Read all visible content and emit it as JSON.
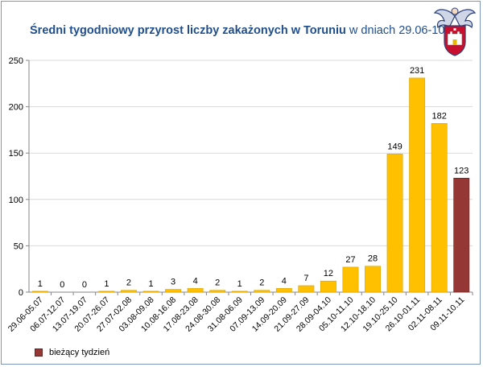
{
  "title": {
    "bold_part": "Średni tygodniowy przyrost liczby zakażonych w Toruniu",
    "regular_part": " w dniach 29.06-10.11"
  },
  "legend": {
    "label": "bieżący tydzień",
    "color": "#953735"
  },
  "colors": {
    "bar": "#ffc000",
    "bar_stroke": "#d9a300",
    "current": "#953735",
    "grid": "#d9d9d9",
    "title": "#1f4e8c"
  },
  "chart_data": {
    "type": "bar",
    "categories": [
      "29.06-05.07",
      "06.07-12.07",
      "13.07-19.07",
      "20.07-26.07",
      "27.07-02.08",
      "03.08-09.08",
      "10.08-16.08",
      "17.08-23.08",
      "24.08-30.08",
      "31.08-06.09",
      "07.09-13.09",
      "14.09-20.09",
      "21.09-27.09",
      "28.09-04.10",
      "05.10-11.10",
      "12.10-18.10",
      "19.10-25.10",
      "26.10-01.11",
      "02.11-08.11",
      "09.11-10.11"
    ],
    "values": [
      1,
      0,
      0,
      1,
      2,
      1,
      3,
      4,
      2,
      1,
      2,
      4,
      7,
      12,
      27,
      28,
      149,
      231,
      182,
      123
    ],
    "highlight_index": 19,
    "ylim": [
      0,
      250
    ],
    "yticks": [
      0,
      50,
      100,
      150,
      200,
      250
    ],
    "grid": true,
    "legend_position": "bottom-left"
  }
}
